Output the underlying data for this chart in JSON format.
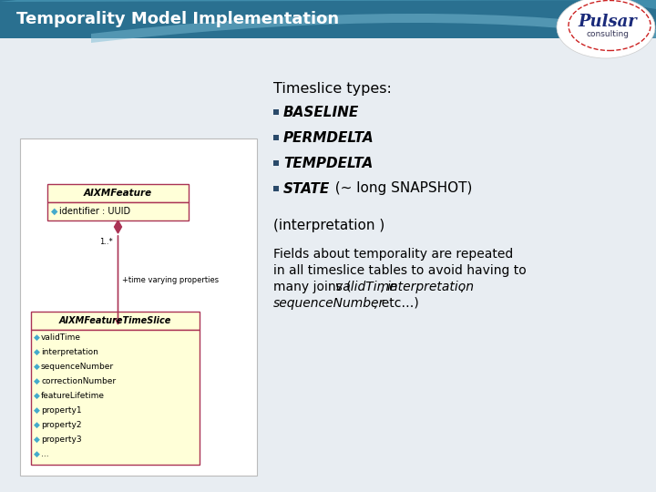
{
  "title": "Temporality Model Implementation",
  "title_color": "#ffffff",
  "title_bg_dark": "#2a7090",
  "title_bg_mid": "#3a8aaa",
  "body_bg_color": "#dce6ee",
  "slide_bg_color": "#dce6ee",
  "timeslice_header": "Timeslice types:",
  "bullet_items": [
    "BASELINE",
    "PERMDELTA",
    "TEMPDELTA",
    "STATE"
  ],
  "state_suffix": "  (~ long SNAPSHOT)",
  "bullet_color": "#2a4a6a",
  "extra_line": "(interpretation )",
  "body_line1": "Fields about temporality are repeated",
  "body_line2": "in all timeslice tables to avoid having to",
  "body_line3": "many joins (",
  "body_italic1": "validTime",
  "body_sep1": ", ",
  "body_italic2": "interpretation",
  "body_sep2": ",",
  "body_line4": "sequenceNumber",
  "body_line4b": ", etc…)",
  "uml_bg": "#ffffd8",
  "uml_border": "#aa3355",
  "aixm_feature_title": "AIXMFeature",
  "aixm_feature_attr": "identifier : UUID",
  "timeslice_title": "AIXMFeatureTimeSlice",
  "timeslice_attrs": [
    "validTime",
    "interpretation",
    "sequenceNumber",
    "correctionNumber",
    "featureLifetime",
    "property1",
    "property2",
    "property3",
    "..."
  ],
  "icon_color": "#44aacc",
  "arrow_color": "#aa3355",
  "assoc_label": "+time varying properties",
  "assoc_mult": "1..*"
}
